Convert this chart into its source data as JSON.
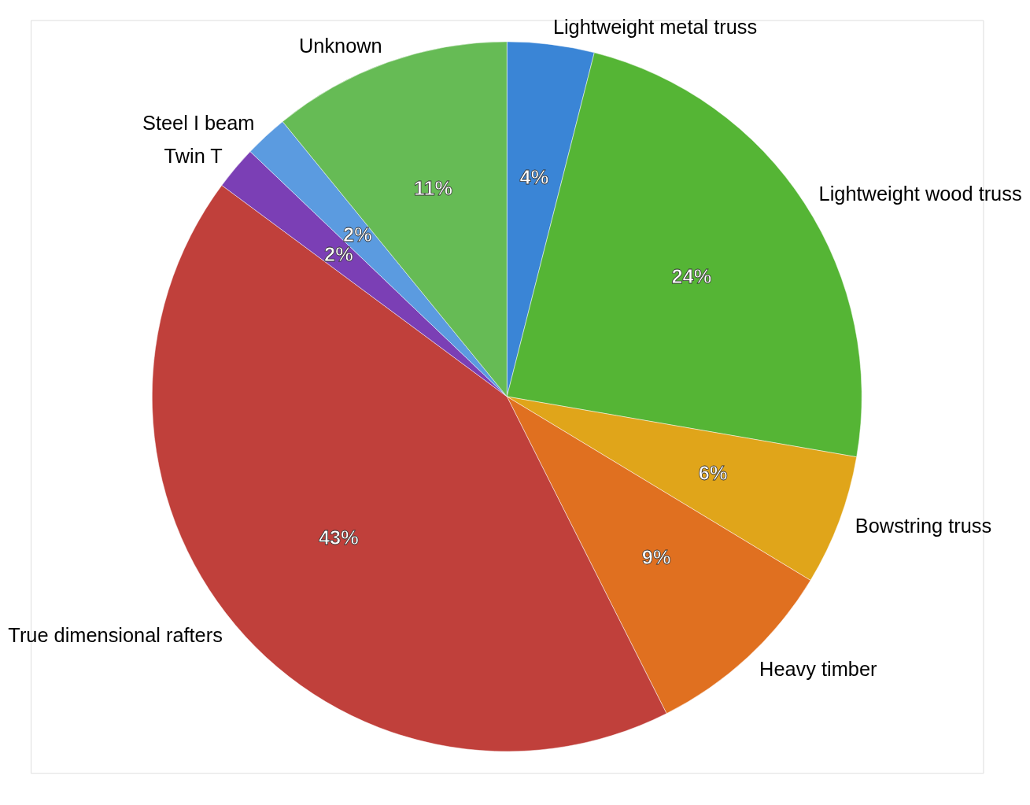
{
  "chart_data": {
    "type": "pie",
    "categories": [
      "Lightweight metal truss",
      "Lightweight wood truss",
      "Bowstring truss",
      "Heavy timber",
      "True dimensional rafters",
      "Twin T",
      "Steel I beam",
      "Unknown"
    ],
    "values": [
      4,
      24,
      6,
      9,
      43,
      2,
      2,
      11
    ],
    "value_labels": [
      "4%",
      "24%",
      "6%",
      "9%",
      "43%",
      "2%",
      "2%",
      "11%"
    ],
    "colors": [
      "#3a85d6",
      "#55b535",
      "#e0a51a",
      "#e07020",
      "#c0403b",
      "#7b3fb5",
      "#5b9be0",
      "#66bb55"
    ],
    "legend": false
  }
}
